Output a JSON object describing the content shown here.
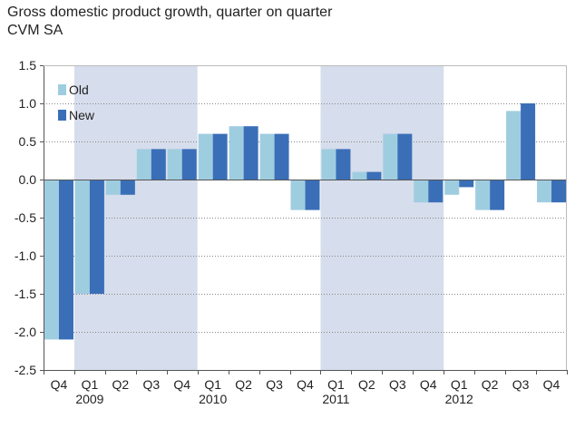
{
  "chart_data": {
    "type": "bar",
    "title": "Gross domestic product growth, quarter on quarter",
    "subtitle": "CVM SA",
    "xlabel": "",
    "ylabel": "",
    "ylim": [
      -2.5,
      1.5
    ],
    "yticks": [
      "1.5",
      "1.0",
      "0.5",
      "0.0",
      "-0.5",
      "-1.0",
      "-1.5",
      "-2.0",
      "-2.5"
    ],
    "ytick_values": [
      1.5,
      1.0,
      0.5,
      0.0,
      -0.5,
      -1.0,
      -1.5,
      -2.0,
      -2.5
    ],
    "grid": true,
    "legend_position": "top-left",
    "categories": [
      "Q4",
      "Q1",
      "Q2",
      "Q3",
      "Q4",
      "Q1",
      "Q2",
      "Q3",
      "Q4",
      "Q1",
      "Q2",
      "Q3",
      "Q4",
      "Q1",
      "Q2",
      "Q3",
      "Q4"
    ],
    "year_labels": [
      {
        "index": 1,
        "label": "2009"
      },
      {
        "index": 5,
        "label": "2010"
      },
      {
        "index": 9,
        "label": "2011"
      },
      {
        "index": 13,
        "label": "2012"
      }
    ],
    "shaded_years": [
      {
        "start_index": 1,
        "end_index": 4
      },
      {
        "start_index": 9,
        "end_index": 12
      }
    ],
    "series": [
      {
        "name": "Old",
        "color": "#9fcde0",
        "values": [
          -2.1,
          -1.5,
          -0.2,
          0.4,
          0.4,
          0.6,
          0.7,
          0.6,
          -0.4,
          0.4,
          0.1,
          0.6,
          -0.3,
          -0.2,
          -0.4,
          0.9,
          -0.3
        ]
      },
      {
        "name": "New",
        "color": "#3a6fb8",
        "values": [
          -2.1,
          -1.5,
          -0.2,
          0.4,
          0.4,
          0.6,
          0.7,
          0.6,
          -0.4,
          0.4,
          0.1,
          0.6,
          -0.3,
          -0.1,
          -0.4,
          1.0,
          -0.3
        ]
      }
    ],
    "colors": {
      "shade": "#d6ddec",
      "grid": "#888888",
      "axis": "#555555"
    }
  }
}
